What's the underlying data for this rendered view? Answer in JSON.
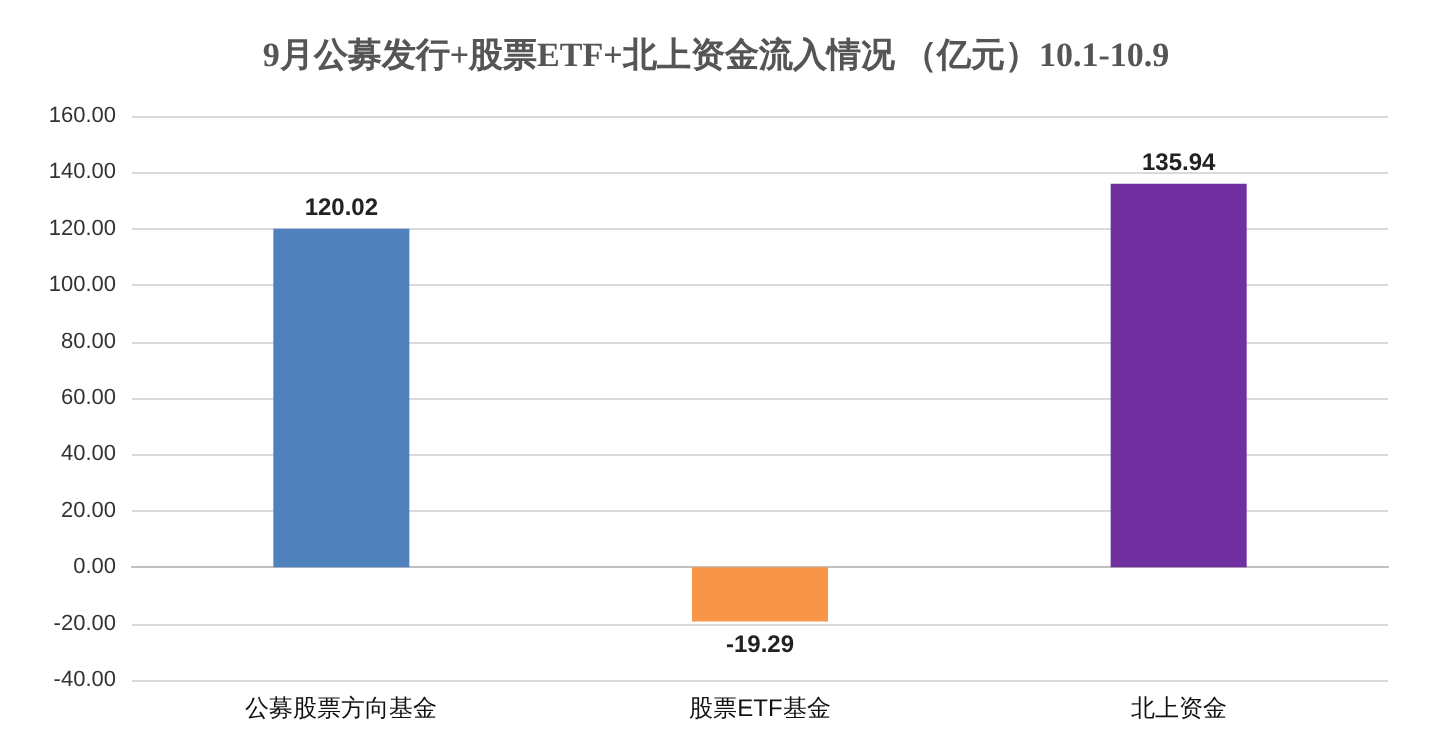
{
  "chart_data": {
    "type": "bar",
    "title": "9月公募发行+股票ETF+北上资金流入情况 （亿元）10.1-10.9",
    "categories": [
      "公募股票方向基金",
      "股票ETF基金",
      "北上资金"
    ],
    "values": [
      120.02,
      -19.29,
      135.94
    ],
    "colors": [
      "#4f81bd",
      "#f79646",
      "#7030a0"
    ],
    "ylim": [
      -40,
      160
    ],
    "yticks": [
      {
        "value": -40,
        "label": "-40.00"
      },
      {
        "value": -20,
        "label": "-20.00"
      },
      {
        "value": 0,
        "label": "0.00"
      },
      {
        "value": 20,
        "label": "20.00"
      },
      {
        "value": 40,
        "label": "40.00"
      },
      {
        "value": 60,
        "label": "60.00"
      },
      {
        "value": 80,
        "label": "80.00"
      },
      {
        "value": 100,
        "label": "100.00"
      },
      {
        "value": 120,
        "label": "120.00"
      },
      {
        "value": 140,
        "label": "140.00"
      },
      {
        "value": 160,
        "label": "160.00"
      }
    ],
    "grid": "y",
    "data_labels": true
  }
}
